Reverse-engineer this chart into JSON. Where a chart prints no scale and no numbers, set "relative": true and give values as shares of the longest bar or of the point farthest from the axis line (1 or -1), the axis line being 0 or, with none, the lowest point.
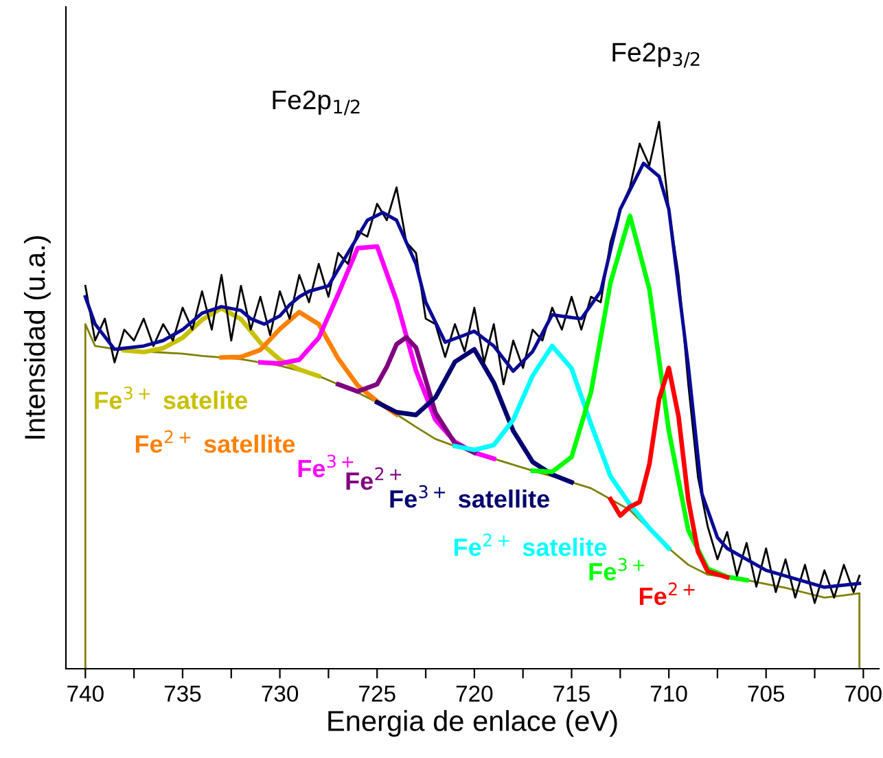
{
  "chart_data": {
    "type": "line",
    "relative": true,
    "xlabel": "Energia de enlace (eV)",
    "ylabel": "Intensidad (u.a.)",
    "annotations": [
      "Fe2p$_{1/2}$",
      "Fe2p$_{3/2}$"
    ],
    "xlim": [
      741,
      699.2
    ],
    "xticks": [
      740,
      {
        "value": 737.5,
        "label": null
      },
      735,
      {
        "value": 732.5,
        "label": null
      },
      730,
      {
        "value": 727.5,
        "label": null
      },
      725,
      {
        "value": 722.5,
        "label": null
      },
      720,
      {
        "value": 717.5,
        "label": null
      },
      715,
      {
        "value": 712.5,
        "label": null
      },
      710,
      {
        "value": 707.5,
        "label": null
      },
      705,
      {
        "value": 702.5,
        "label": null
      },
      700
    ],
    "tick_labels": "x",
    "series": [
      {
        "color": "#808000",
        "x": [
          740,
          740,
          739.5,
          738,
          736,
          735,
          734,
          733,
          732,
          731,
          730,
          729,
          728,
          727,
          726,
          725,
          724,
          723,
          722,
          721,
          720,
          719,
          718,
          717,
          716,
          715,
          714,
          713,
          712,
          711,
          710,
          709,
          708,
          707,
          706,
          705,
          704,
          703,
          702,
          701,
          700.2,
          700.2
        ],
        "values": [
          0,
          0.63,
          0.59,
          0.582,
          0.578,
          0.576,
          0.572,
          0.569,
          0.566,
          0.56,
          0.554,
          0.545,
          0.535,
          0.52,
          0.505,
          0.487,
          0.465,
          0.442,
          0.42,
          0.407,
          0.395,
          0.384,
          0.373,
          0.362,
          0.352,
          0.341,
          0.33,
          0.31,
          0.29,
          0.255,
          0.22,
          0.19,
          0.172,
          0.167,
          0.162,
          0.155,
          0.148,
          0.139,
          0.13,
          0.134,
          0.138,
          0
        ]
      },
      {
        "name": "Fe$^{3+}$ satelite",
        "color": "#c8c000",
        "x": [
          738,
          737,
          736,
          735,
          734,
          733,
          732,
          731,
          730,
          729,
          728
        ],
        "values": [
          0.582,
          0.579,
          0.586,
          0.605,
          0.638,
          0.659,
          0.639,
          0.596,
          0.565,
          0.547,
          0.535
        ]
      },
      {
        "name": "Fe$^{2+}$ satellite",
        "color": "#ff8000",
        "x": [
          733,
          732,
          731,
          730,
          729,
          728,
          727,
          726,
          725,
          724
        ],
        "values": [
          0.569,
          0.57,
          0.583,
          0.621,
          0.652,
          0.63,
          0.567,
          0.518,
          0.489,
          0.465
        ]
      },
      {
        "name": "Fe$^{3+}$",
        "color": "#ff00ff",
        "x": [
          731,
          730,
          729,
          728,
          727,
          726,
          725,
          724,
          723,
          722,
          721,
          720,
          719
        ],
        "values": [
          0.56,
          0.558,
          0.565,
          0.605,
          0.685,
          0.769,
          0.772,
          0.673,
          0.545,
          0.455,
          0.415,
          0.395,
          0.384
        ]
      },
      {
        "name": "Fe$^{2+}$",
        "color": "#800080",
        "x": [
          727,
          726,
          725,
          724.5,
          724,
          723.5,
          723,
          722.5,
          722,
          721,
          720
        ],
        "values": [
          0.52,
          0.507,
          0.52,
          0.552,
          0.593,
          0.606,
          0.587,
          0.528,
          0.468,
          0.412,
          0.395
        ]
      },
      {
        "name": "Fe$^{3+}$ satellite",
        "color": "#000070",
        "x": [
          725,
          724,
          723,
          722,
          721,
          720,
          719,
          718,
          717,
          716,
          715
        ],
        "values": [
          0.487,
          0.469,
          0.464,
          0.496,
          0.561,
          0.584,
          0.523,
          0.435,
          0.378,
          0.355,
          0.341
        ]
      },
      {
        "name": "Fe$^{2+}$ satelite",
        "color": "#00ffff",
        "x": [
          721,
          720,
          719,
          718,
          717,
          716,
          715,
          714,
          713,
          712,
          711,
          710
        ],
        "values": [
          0.407,
          0.4,
          0.409,
          0.455,
          0.536,
          0.59,
          0.549,
          0.447,
          0.352,
          0.3,
          0.257,
          0.22
        ]
      },
      {
        "name": "Fe$^{3+}$",
        "color": "#00ff00",
        "x": [
          717,
          716,
          715,
          714,
          713,
          712,
          711,
          710,
          709,
          708,
          707,
          706
        ],
        "values": [
          0.362,
          0.36,
          0.387,
          0.506,
          0.706,
          0.828,
          0.694,
          0.435,
          0.253,
          0.183,
          0.168,
          0.162
        ]
      },
      {
        "name": "Fe$^{2+}$",
        "color": "#ff0000",
        "x": [
          713,
          712.5,
          712,
          711.5,
          711,
          710.5,
          710,
          709.5,
          709,
          708.5,
          708,
          707
        ],
        "values": [
          0.31,
          0.28,
          0.296,
          0.305,
          0.374,
          0.493,
          0.55,
          0.461,
          0.309,
          0.214,
          0.178,
          0.167
        ]
      },
      {
        "color": "#000000",
        "x": [
          740,
          739.5,
          739,
          738.5,
          738,
          737.5,
          737,
          736.5,
          736,
          735.5,
          735,
          734.5,
          734,
          733.5,
          733,
          732.5,
          732,
          731.5,
          731,
          730.5,
          730,
          729.5,
          729,
          728.5,
          728,
          727.5,
          727,
          726.5,
          726,
          725.5,
          725,
          724.5,
          724,
          723.5,
          723,
          722.5,
          722,
          721.5,
          721,
          720.5,
          720,
          719.5,
          719,
          718.5,
          718,
          717.5,
          717,
          716.5,
          716,
          715.5,
          715,
          714.5,
          714,
          713.5,
          713,
          712.5,
          712,
          711.5,
          711,
          710.5,
          710,
          709.5,
          709,
          708.5,
          708,
          707.5,
          707,
          706.5,
          706,
          705.5,
          705,
          704.5,
          704,
          703.5,
          703,
          702.5,
          702,
          701.5,
          701,
          700.5,
          700.2
        ],
        "values": [
          0.7,
          0.6,
          0.64,
          0.56,
          0.62,
          0.6,
          0.64,
          0.59,
          0.63,
          0.6,
          0.66,
          0.62,
          0.69,
          0.62,
          0.72,
          0.6,
          0.7,
          0.62,
          0.68,
          0.61,
          0.69,
          0.64,
          0.72,
          0.67,
          0.74,
          0.68,
          0.76,
          0.74,
          0.8,
          0.79,
          0.85,
          0.82,
          0.88,
          0.78,
          0.76,
          0.64,
          0.63,
          0.57,
          0.63,
          0.58,
          0.66,
          0.56,
          0.63,
          0.52,
          0.6,
          0.55,
          0.62,
          0.6,
          0.66,
          0.62,
          0.68,
          0.62,
          0.68,
          0.67,
          0.78,
          0.84,
          0.88,
          0.96,
          0.92,
          1.0,
          0.84,
          0.72,
          0.52,
          0.35,
          0.26,
          0.2,
          0.25,
          0.17,
          0.23,
          0.15,
          0.22,
          0.14,
          0.2,
          0.13,
          0.19,
          0.12,
          0.18,
          0.13,
          0.19,
          0.14,
          0.17
        ]
      },
      {
        "color": "#0a0a96",
        "x": [
          740,
          739.5,
          738.5,
          737,
          736,
          735,
          734,
          733,
          732,
          731.5,
          730.8,
          730,
          729.5,
          729,
          728.5,
          727.5,
          726.5,
          725.5,
          724.7,
          724,
          723,
          722.5,
          721.5,
          720.5,
          720,
          719,
          718,
          717,
          716,
          715,
          714.5,
          713.5,
          712.5,
          711.3,
          710.5,
          710,
          709,
          708.3,
          707.5,
          707,
          705,
          702,
          700.2
        ],
        "values": [
          0.68,
          0.63,
          0.584,
          0.59,
          0.6,
          0.62,
          0.65,
          0.662,
          0.655,
          0.64,
          0.63,
          0.645,
          0.665,
          0.68,
          0.69,
          0.7,
          0.76,
          0.82,
          0.834,
          0.82,
          0.74,
          0.67,
          0.597,
          0.61,
          0.617,
          0.59,
          0.544,
          0.58,
          0.647,
          0.642,
          0.64,
          0.69,
          0.84,
          0.924,
          0.9,
          0.84,
          0.554,
          0.32,
          0.24,
          0.22,
          0.18,
          0.149,
          0.156
        ]
      }
    ]
  }
}
